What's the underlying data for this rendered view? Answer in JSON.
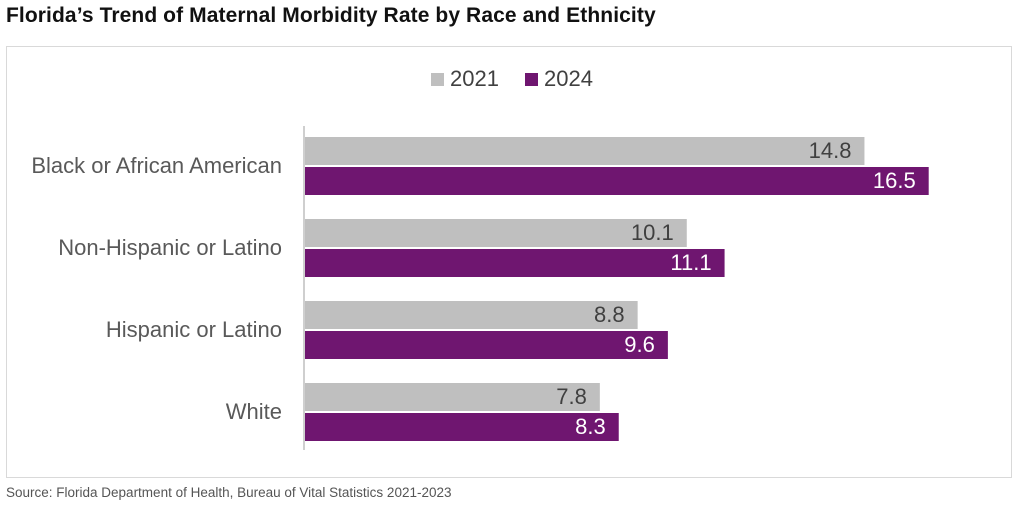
{
  "title": "Florida’s Trend of Maternal Morbidity Rate by Race and Ethnicity",
  "source": "Source: Florida Department of Health, Bureau of Vital Statistics 2021-2023",
  "colors": {
    "series_2021": "#bfbfbf",
    "series_2024": "#6f1670",
    "text": "#404040"
  },
  "chart_data": {
    "type": "bar",
    "orientation": "horizontal",
    "categories": [
      "Black or African American",
      "Non-Hispanic or Latino",
      "Hispanic or Latino",
      "White"
    ],
    "series": [
      {
        "name": "2021",
        "values": [
          14.8,
          10.1,
          8.8,
          7.8
        ]
      },
      {
        "name": "2024",
        "values": [
          16.5,
          11.1,
          9.6,
          8.3
        ]
      }
    ],
    "xlim": [
      0,
      18
    ],
    "legend": "top-center",
    "grid": false
  }
}
